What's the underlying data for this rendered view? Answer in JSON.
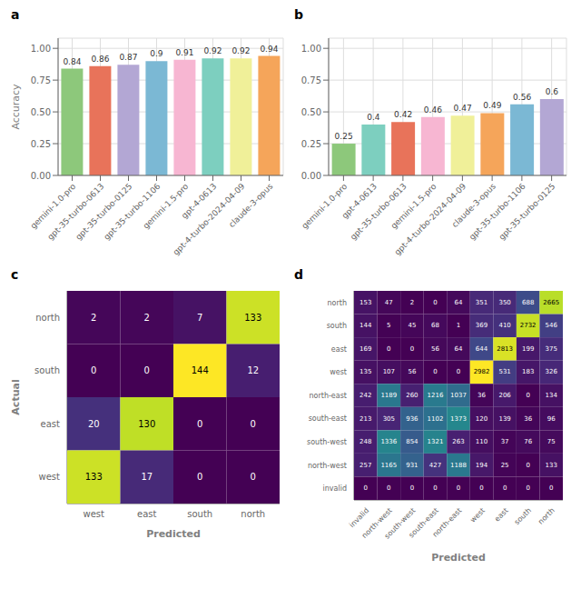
{
  "chart_data": [
    {
      "type": "bar",
      "title": "a",
      "ylabel": "Accuracy",
      "categories": [
        "gemini-1.0-pro",
        "gpt-35-turbo-0613",
        "gpt-35-turbo-0125",
        "gpt-35-turbo-1106",
        "gemini-1.5-pro",
        "gpt-4-0613",
        "gpt-4-turbo-2024-04-09",
        "claude-3-opus"
      ],
      "values": [
        0.84,
        0.86,
        0.87,
        0.9,
        0.91,
        0.92,
        0.92,
        0.94
      ],
      "colors": [
        "#8dc87b",
        "#e8735a",
        "#b3a7d4",
        "#7bb8d4",
        "#f7b6d2",
        "#7dcfbf",
        "#f0f099",
        "#f5a55a"
      ],
      "ylim": [
        0,
        1.08
      ],
      "yticks": [
        {
          "value": 0,
          "label": "0.00"
        },
        {
          "value": 0.25,
          "label": "0.25"
        },
        {
          "value": 0.5,
          "label": "0.50"
        },
        {
          "value": 0.75,
          "label": "0.75"
        },
        {
          "value": 1,
          "label": "1.00"
        }
      ],
      "grid": true,
      "data_labels": true
    },
    {
      "type": "bar",
      "title": "b",
      "categories": [
        "gemini-1.0-pro",
        "gpt-4-0613",
        "gpt-35-turbo-0613",
        "gemini-1.5-pro",
        "gpt-4-turbo-2024-04-09",
        "claude-3-opus",
        "gpt-35-turbo-1106",
        "gpt-35-turbo-0125"
      ],
      "values": [
        0.25,
        0.4,
        0.42,
        0.46,
        0.47,
        0.49,
        0.56,
        0.6
      ],
      "colors": [
        "#8dc87b",
        "#7dcfbf",
        "#e8735a",
        "#f7b6d2",
        "#f0f099",
        "#f5a55a",
        "#7bb8d4",
        "#b3a7d4"
      ],
      "ylim": [
        0,
        1.08
      ],
      "yticks": [
        {
          "value": 0,
          "label": "0.00"
        },
        {
          "value": 0.25,
          "label": "0.25"
        },
        {
          "value": 0.5,
          "label": "0.50"
        },
        {
          "value": 0.75,
          "label": "0.75"
        },
        {
          "value": 1,
          "label": "1.00"
        }
      ],
      "grid": true,
      "data_labels": true
    },
    {
      "type": "heatmap",
      "title": "c",
      "xlabel": "Predicted",
      "ylabel": "Actual",
      "categories": [
        "west",
        "east",
        "south",
        "north"
      ],
      "y_categories": [
        "north",
        "south",
        "east",
        "west"
      ],
      "cells": [
        [
          2,
          2,
          7,
          133
        ],
        [
          0,
          0,
          144,
          12
        ],
        [
          20,
          130,
          0,
          0
        ],
        [
          133,
          17,
          0,
          0
        ]
      ],
      "data_labels": true
    },
    {
      "type": "heatmap",
      "title": "d",
      "xlabel": "Predicted",
      "categories": [
        "invalid",
        "north-west",
        "south-west",
        "south-east",
        "north-east",
        "west",
        "east",
        "south",
        "north"
      ],
      "y_categories": [
        "north",
        "south",
        "east",
        "west",
        "north-east",
        "south-east",
        "south-west",
        "north-west",
        "invalid"
      ],
      "cells": [
        [
          153,
          47,
          2,
          0,
          64,
          351,
          350,
          688,
          2665
        ],
        [
          144,
          5,
          45,
          68,
          1,
          369,
          410,
          2732,
          546
        ],
        [
          169,
          0,
          0,
          56,
          64,
          644,
          2813,
          199,
          375
        ],
        [
          135,
          107,
          56,
          0,
          0,
          2982,
          531,
          183,
          326
        ],
        [
          242,
          1189,
          260,
          1216,
          1037,
          36,
          206,
          0,
          134
        ],
        [
          213,
          305,
          936,
          1102,
          1373,
          120,
          139,
          36,
          96
        ],
        [
          248,
          1336,
          854,
          1321,
          263,
          110,
          37,
          76,
          75
        ],
        [
          257,
          1165,
          931,
          427,
          1188,
          194,
          25,
          0,
          133
        ],
        [
          0,
          0,
          0,
          0,
          0,
          0,
          0,
          0,
          0
        ]
      ],
      "data_labels": true
    }
  ]
}
